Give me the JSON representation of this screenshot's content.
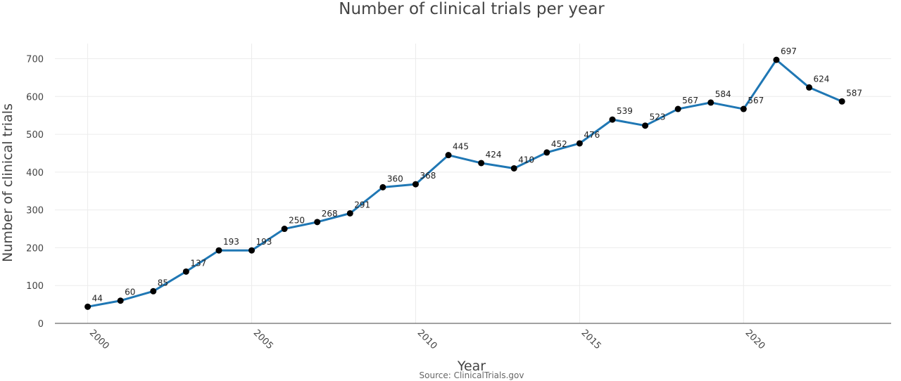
{
  "chart_data": {
    "type": "line",
    "title": "Number of clinical trials per year",
    "xlabel": "Year",
    "ylabel": "Number of clinical trials",
    "source": "Source: ClinicalTrials.gov",
    "x": [
      2000,
      2001,
      2002,
      2003,
      2004,
      2005,
      2006,
      2007,
      2008,
      2009,
      2010,
      2011,
      2012,
      2013,
      2014,
      2015,
      2016,
      2017,
      2018,
      2019,
      2020,
      2021,
      2022,
      2023
    ],
    "series": [
      {
        "values": [
          44,
          60,
          85,
          137,
          193,
          193,
          250,
          268,
          291,
          360,
          368,
          445,
          424,
          410,
          452,
          476,
          539,
          523,
          567,
          584,
          567,
          697,
          624,
          587
        ],
        "color": "#1f77b4",
        "marker_color": "#000000"
      }
    ],
    "xticks": [
      2000,
      2005,
      2010,
      2015,
      2020
    ],
    "yticks": [
      0,
      100,
      200,
      300,
      400,
      500,
      600,
      700
    ],
    "xlim": [
      1999,
      2024.5
    ],
    "ylim": [
      0,
      740
    ],
    "grid": true,
    "data_labels": true
  }
}
